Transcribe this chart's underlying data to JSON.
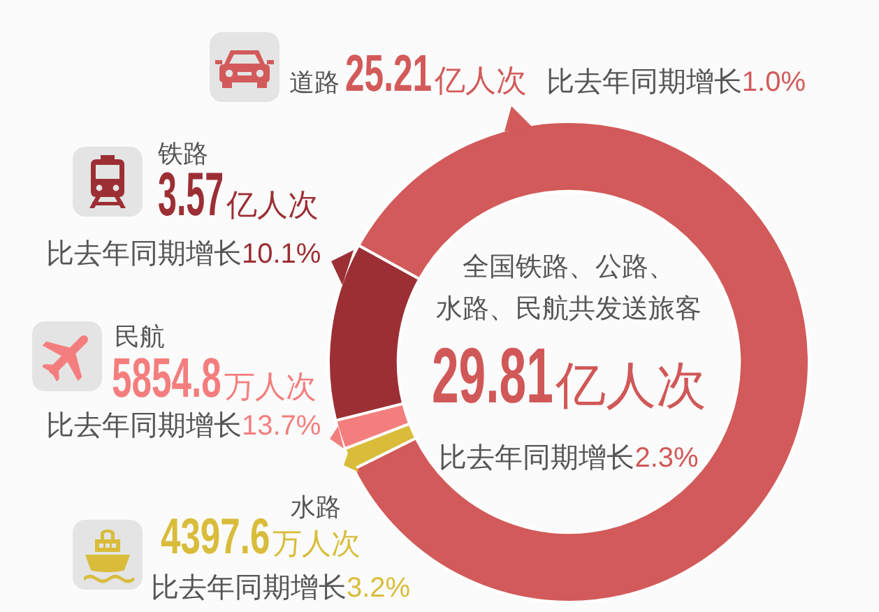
{
  "chart_data": {
    "type": "donut",
    "title": "全国铁路、公路、水路、民航共发送旅客",
    "categories": [
      "道路",
      "水路",
      "民航",
      "铁路"
    ],
    "values": [
      25.21,
      0.43976,
      0.58548,
      3.57
    ],
    "colors": [
      "#d35a5a",
      "#d9bc3a",
      "#f47e7e",
      "#9c2f34"
    ],
    "value_labels": [
      "25.21亿人次",
      null,
      null,
      "3.57亿人次"
    ],
    "legend": "left",
    "annotations": [
      "比去年同期增长1.0%",
      "4397.6万人次",
      "比去年同期增长3.2%",
      "5854.8万人次",
      "比去年同期增长13.7%",
      "比去年同期增长10.1%",
      "29.81亿人次",
      "比去年同期增长2.3%"
    ]
  }
}
